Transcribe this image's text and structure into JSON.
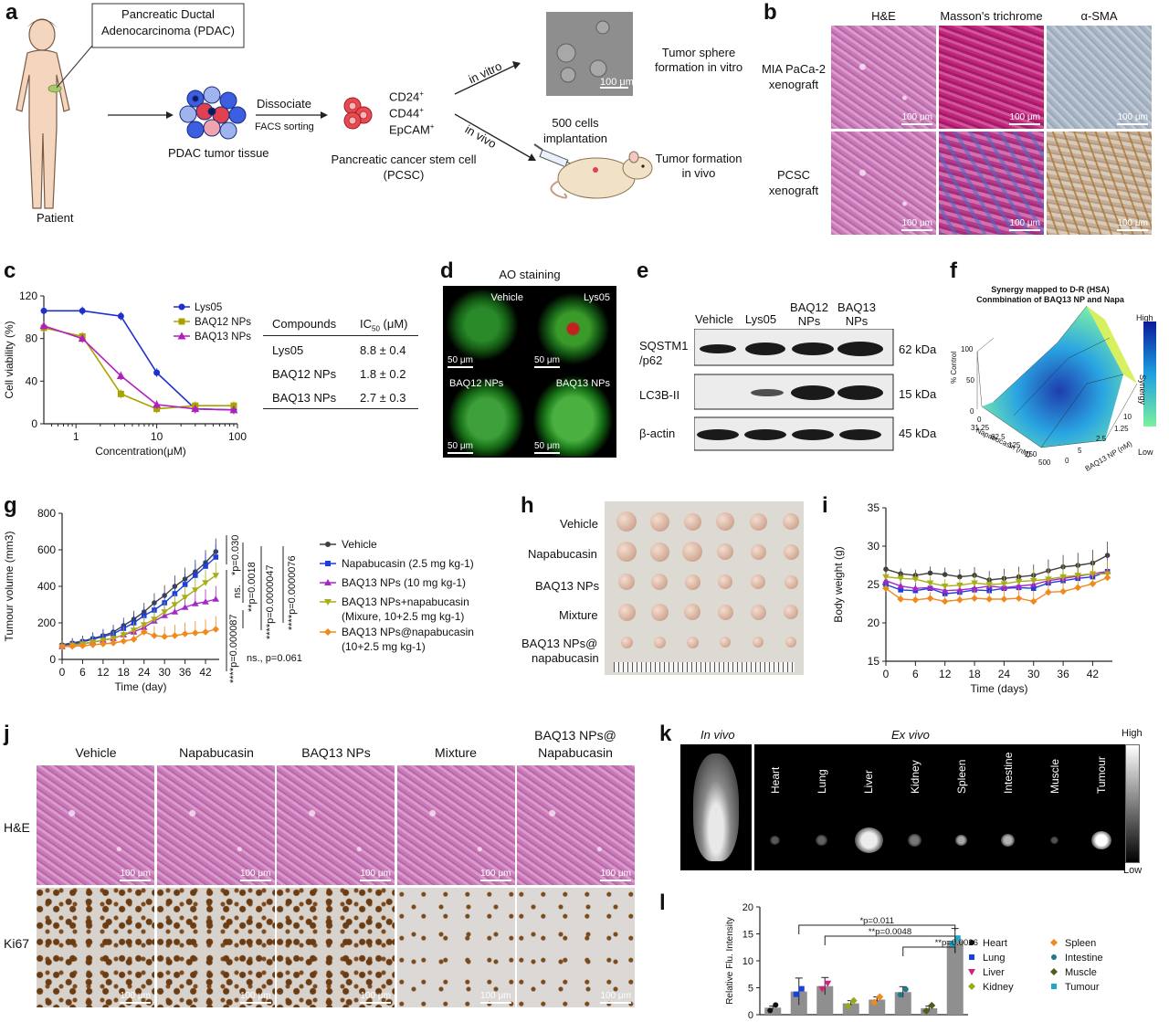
{
  "panel_labels": [
    "a",
    "b",
    "c",
    "d",
    "e",
    "f",
    "g",
    "h",
    "i",
    "j",
    "k",
    "l"
  ],
  "panel_a": {
    "box_title_line1": "Pancreatic Ductal",
    "box_title_line2": "Adenocarcinoma (PDAC)",
    "patient": "Patient",
    "tumor_tissue": "PDAC tumor tissue",
    "dissociate": "Dissociate",
    "facs": "FACS sorting",
    "markers": [
      "CD24",
      "CD44",
      "EpCAM"
    ],
    "marker_sup": "+",
    "pcsc_line1": "Pancreatic cancer stem cell",
    "pcsc_line2": "(PCSC)",
    "in_vitro": "in vitro",
    "in_vivo": "in vivo",
    "sphere_line1": "Tumor sphere",
    "sphere_line2": "formation in vitro",
    "scale": "100 μm",
    "implant_line1": "500 cells",
    "implant_line2": "implantation",
    "formation_line1": "Tumor formation",
    "formation_line2": "in vivo"
  },
  "panel_b": {
    "columns": [
      "H&E",
      "Masson's trichrome",
      "α-SMA"
    ],
    "rows": [
      {
        "line1": "MIA PaCa-2",
        "line2": "xenograft"
      },
      {
        "line1": "PCSC",
        "line2": "xenograft"
      }
    ],
    "scale": "100 μm"
  },
  "panel_c": {
    "table_headers": [
      "Compounds",
      "IC",
      "50",
      " (μM)"
    ],
    "table_rows": [
      {
        "compound": "Lys05",
        "ic50": "8.8 ± 0.4"
      },
      {
        "compound": "BAQ12 NPs",
        "ic50": "1.8 ± 0.2"
      },
      {
        "compound": "BAQ13 NPs",
        "ic50": "2.7 ± 0.3"
      }
    ]
  },
  "panel_d": {
    "title": "AO staining",
    "cells": [
      "Vehicle",
      "Lys05",
      "BAQ12 NPs",
      "BAQ13 NPs"
    ],
    "scale": "50 μm"
  },
  "panel_e": {
    "columns": [
      "Vehicle",
      "Lys05",
      "BAQ12",
      "NPs",
      "BAQ13",
      "NPs"
    ],
    "rows": [
      {
        "name_line1": "SQSTM1",
        "name_line2": "/p62",
        "kda": "62 kDa"
      },
      {
        "name_line1": "LC3B-II",
        "name_line2": "",
        "kda": "15 kDa"
      },
      {
        "name_line1": "β-actin",
        "name_line2": "",
        "kda": "45 kDa"
      }
    ]
  },
  "panel_f": {
    "title_line1": "Synergy mapped to D-R (HSA)",
    "title_line2": "Conmbination of BAQ13 NP and Napa",
    "zlabel": "% Control",
    "z_ticks": [
      "100",
      "50",
      "0"
    ],
    "x_label": "Napabucasin (nM)",
    "x_ticks": [
      "0",
      "31.25",
      "62.5",
      "125",
      "250",
      "500"
    ],
    "y_label": "BAQ13 NP (nM)",
    "y_ticks": [
      "0",
      "1.25",
      "2.5",
      "5",
      "10"
    ],
    "colorbar_high": "High",
    "colorbar_low": "Low",
    "colorbar_label": "Synergy"
  },
  "panel_g": {
    "stats": [
      "*p=0.030",
      "**p=0.0018",
      "****p=0.0000047",
      "****p=0.0000076",
      "****p=0.000087",
      "ns.",
      "ns., p=0.061"
    ]
  },
  "panel_h": {
    "rows": [
      "Vehicle",
      "Napabucasin",
      "BAQ13 NPs",
      "Mixture",
      "BAQ13 NPs@",
      "napabucasin"
    ]
  },
  "panel_j": {
    "columns": [
      "Vehicle",
      "Napabucasin",
      "BAQ13 NPs",
      "Mixture",
      "BAQ13 NPs@",
      "Napabucasin"
    ],
    "rows": [
      "H&E",
      "Ki67"
    ],
    "scale": "100 μm"
  },
  "panel_k": {
    "in_vivo": "In vivo",
    "ex_vivo": "Ex vivo",
    "organs": [
      "Heart",
      "Lung",
      "Liver",
      "Kidney",
      "Spleen",
      "Intestine",
      "Muscle",
      "Tumour"
    ],
    "high": "High",
    "low": "Low"
  },
  "colors": {
    "lys05": "#1f2fd0",
    "baq12": "#a9a300",
    "baq13": "#b21fc0",
    "vehicle": "#404040",
    "napa": "#1a3fe0",
    "baq13np": "#a428c8",
    "mix": "#a8ae18",
    "nap_np": "#f08a1e"
  },
  "chart_data": [
    {
      "id": "c",
      "type": "line",
      "xlabel": "Concentration(μM)",
      "ylabel": "Cell viability (%)",
      "xscale": "log",
      "xlim": [
        0.4,
        100
      ],
      "ylim": [
        0,
        120
      ],
      "x_ticks": [
        1,
        10,
        100
      ],
      "x_tick_labels": [
        "1",
        "10",
        "100"
      ],
      "y_ticks": [
        0,
        40,
        80,
        120
      ],
      "legend_position": "top-left",
      "series": [
        {
          "name": "Lys05",
          "x": [
            0.4,
            1.2,
            3.6,
            10,
            30,
            90
          ],
          "y": [
            106,
            106,
            101,
            48,
            14,
            13
          ]
        },
        {
          "name": "BAQ12 NPs",
          "x": [
            0.4,
            1.2,
            3.6,
            10,
            30,
            90
          ],
          "y": [
            90,
            82,
            28,
            14,
            17,
            17
          ]
        },
        {
          "name": "BAQ13 NPs",
          "x": [
            0.4,
            1.2,
            3.6,
            10,
            30,
            90
          ],
          "y": [
            92,
            80,
            45,
            18,
            14,
            13
          ]
        }
      ]
    },
    {
      "id": "g",
      "type": "line",
      "xlabel": "Time (day)",
      "ylabel": "Tumour volume (mm3)",
      "xlim": [
        0,
        46
      ],
      "ylim": [
        0,
        800
      ],
      "x_ticks": [
        0,
        6,
        12,
        18,
        24,
        30,
        36,
        42
      ],
      "y_ticks": [
        0,
        200,
        400,
        600,
        800
      ],
      "legend_position": "right",
      "x": [
        0,
        3,
        6,
        9,
        12,
        15,
        18,
        21,
        24,
        27,
        30,
        33,
        36,
        39,
        42,
        45
      ],
      "series": [
        {
          "name": "Vehicle",
          "y": [
            80,
            90,
            100,
            115,
            130,
            150,
            185,
            220,
            260,
            310,
            350,
            400,
            440,
            480,
            530,
            590
          ]
        },
        {
          "name": "Napabucasin (2.5 mg kg-1)",
          "y": [
            75,
            85,
            95,
            110,
            125,
            140,
            170,
            200,
            240,
            270,
            310,
            360,
            410,
            460,
            510,
            560
          ]
        },
        {
          "name": "BAQ13 NPs (10 mg kg-1)",
          "y": [
            70,
            80,
            85,
            95,
            105,
            115,
            135,
            150,
            175,
            210,
            240,
            260,
            285,
            305,
            315,
            330
          ]
        },
        {
          "name": "BAQ13 NPs+napabucasin\n(Mixure, 10+2.5 mg kg-1)",
          "y": [
            70,
            78,
            85,
            95,
            105,
            115,
            135,
            160,
            190,
            220,
            260,
            300,
            340,
            380,
            420,
            460
          ]
        },
        {
          "name": "BAQ13 NPs@napabucasin\n(10+2.5 mg kg-1)",
          "y": [
            70,
            72,
            75,
            80,
            85,
            90,
            100,
            110,
            150,
            130,
            125,
            130,
            140,
            145,
            150,
            165
          ]
        }
      ]
    },
    {
      "id": "i",
      "type": "line",
      "xlabel": "Time (days)",
      "ylabel": "Body weight (g)",
      "xlim": [
        0,
        46
      ],
      "ylim": [
        15,
        35
      ],
      "x_ticks": [
        0,
        6,
        12,
        18,
        24,
        30,
        36,
        42
      ],
      "y_ticks": [
        15,
        20,
        25,
        30,
        35
      ],
      "x": [
        0,
        3,
        6,
        9,
        12,
        15,
        18,
        21,
        24,
        27,
        30,
        33,
        36,
        39,
        42,
        45
      ],
      "series": [
        {
          "name": "Vehicle",
          "y": [
            27,
            26.4,
            26.2,
            26.5,
            26.3,
            26,
            26.2,
            25.6,
            25.8,
            26,
            26.2,
            26.8,
            27.3,
            27.5,
            27.8,
            28.8
          ]
        },
        {
          "name": "Napabucasin",
          "y": [
            25,
            24.3,
            24.2,
            24.5,
            23.8,
            24,
            24.3,
            24.2,
            24.5,
            24.6,
            24.5,
            25.2,
            25.5,
            25.8,
            26,
            26.7
          ]
        },
        {
          "name": "BAQ13 NPs",
          "y": [
            25.5,
            24.8,
            24.5,
            24.6,
            24.2,
            24.3,
            24.5,
            24.8,
            24.6,
            24.8,
            25,
            25.5,
            25.8,
            26.1,
            26.4,
            26.7
          ]
        },
        {
          "name": "Mixture",
          "y": [
            26,
            25.8,
            25.7,
            25.2,
            24.8,
            24.9,
            25.2,
            25,
            25.1,
            25.4,
            25.5,
            25.7,
            26,
            26.2,
            26.4,
            26.4
          ]
        },
        {
          "name": "BAQ13 NPs@napabucasin",
          "y": [
            24.5,
            23.1,
            23,
            23.2,
            22.8,
            23,
            23.2,
            23.1,
            23.1,
            23.2,
            22.8,
            24,
            24.1,
            24.6,
            25.1,
            25.9
          ]
        }
      ]
    },
    {
      "id": "l",
      "type": "bar",
      "ylabel": "Relative Flu. Intensity",
      "ylim": [
        0,
        20
      ],
      "y_ticks": [
        0,
        5,
        10,
        15,
        20
      ],
      "categories": [
        "Heart",
        "Lung",
        "Liver",
        "Kidney",
        "Spleen",
        "Intestine",
        "Muscle",
        "Tumour"
      ],
      "values": [
        1.3,
        4.3,
        5.3,
        2.1,
        2.8,
        4.2,
        1.2,
        13.7
      ],
      "errors": [
        0.3,
        2.5,
        1.6,
        0.5,
        0.5,
        1.0,
        0.4,
        2.3
      ],
      "marker_colors": [
        "#111111",
        "#1a3fe0",
        "#d4217e",
        "#9aa81f",
        "#f08a1e",
        "#1f7a8c",
        "#555a1a",
        "#1fa7c9"
      ],
      "legend_position": "right",
      "annotations": [
        "*p=0.011",
        "**p=0.0048",
        "**p=0.0026"
      ]
    }
  ]
}
